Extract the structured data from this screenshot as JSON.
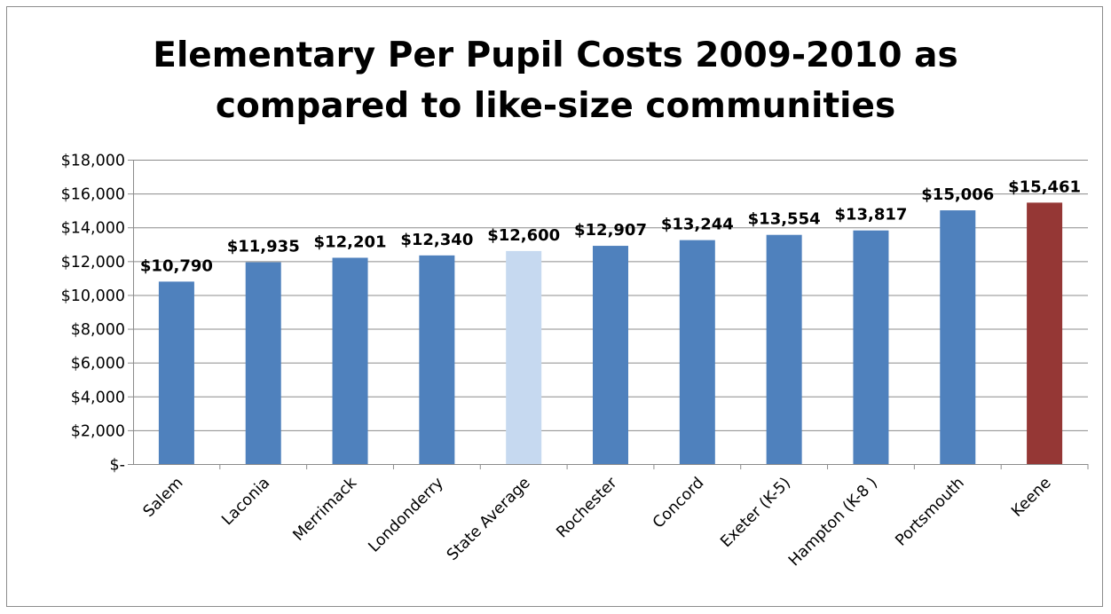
{
  "chart_data": {
    "type": "bar",
    "title_lines": [
      "Elementary Per Pupil Costs 2009-2010 as",
      "compared to like-size communities"
    ],
    "categories": [
      "Salem",
      "Laconia",
      "Merrimack",
      "Londonderry",
      "State Average",
      "Rochester",
      "Concord",
      "Exeter (K-5)",
      "Hampton (K-8 )",
      "Portsmouth",
      "Keene"
    ],
    "values": [
      10790,
      11935,
      12201,
      12340,
      12600,
      12907,
      13244,
      13554,
      13817,
      15006,
      15461
    ],
    "data_labels": [
      "$10,790",
      "$11,935",
      "$12,201",
      "$12,340",
      "$12,600",
      "$12,907",
      "$13,244",
      "$13,554",
      "$13,817",
      "$15,006",
      "$15,461"
    ],
    "bar_colors": [
      "#4f81bd",
      "#4f81bd",
      "#4f81bd",
      "#4f81bd",
      "#c6d9f0",
      "#4f81bd",
      "#4f81bd",
      "#4f81bd",
      "#4f81bd",
      "#4f81bd",
      "#953735"
    ],
    "y_ticks": [
      0,
      2000,
      4000,
      6000,
      8000,
      10000,
      12000,
      14000,
      16000,
      18000
    ],
    "y_tick_labels": [
      "$-",
      "$2,000",
      "$4,000",
      "$6,000",
      "$8,000",
      "$10,000",
      "$12,000",
      "$14,000",
      "$16,000",
      "$18,000"
    ],
    "ylim": [
      0,
      18000
    ],
    "grid": true,
    "legend": "none",
    "xlabel": "",
    "ylabel": ""
  }
}
